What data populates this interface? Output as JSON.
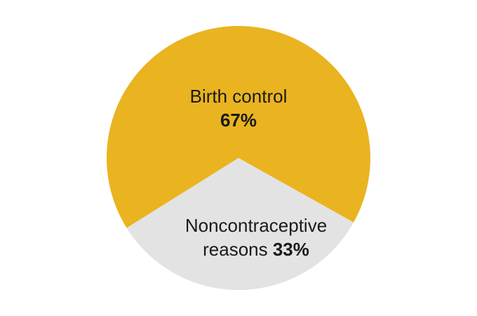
{
  "chart_data": {
    "type": "pie",
    "categories": [
      "Birth control",
      "Noncontraceptive reasons"
    ],
    "values": [
      67,
      33
    ],
    "value_labels": [
      "67%",
      "33%"
    ],
    "colors": [
      "#eab320",
      "#e3e3e3"
    ]
  }
}
